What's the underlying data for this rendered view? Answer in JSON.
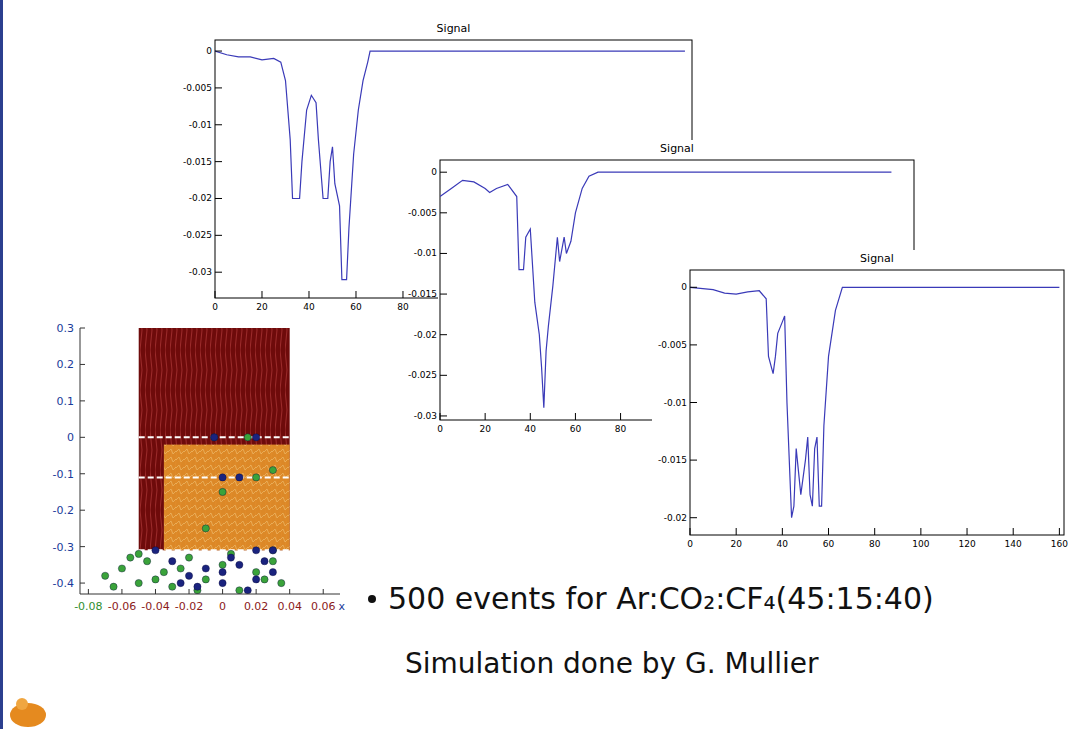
{
  "chart_data": [
    {
      "type": "scatter",
      "xlim": [
        -0.085,
        0.07
      ],
      "ylim": [
        -0.43,
        0.3
      ],
      "xticks": [
        -0.08,
        -0.06,
        -0.04,
        -0.02,
        0,
        0.02,
        0.04,
        0.06
      ],
      "yticks": [
        0.3,
        0.2,
        0.1,
        0,
        -0.1,
        -0.2,
        -0.3,
        -0.4
      ],
      "x_label": "x",
      "electrodes": [
        0,
        -0.11,
        -0.31
      ],
      "drift_region": {
        "x": [
          -0.05,
          0.04
        ],
        "y": [
          -0.31,
          0.3
        ]
      },
      "avalanche_region": {
        "x": [
          -0.035,
          0.04
        ],
        "y": [
          -0.31,
          -0.02
        ]
      },
      "series": [
        {
          "color": "#3aa33a",
          "marker": "circle",
          "x": [
            -0.07,
            -0.06,
            -0.05,
            -0.045,
            -0.035,
            -0.03,
            -0.02,
            -0.01,
            0,
            0.01,
            0.02,
            0.03,
            0.035,
            -0.065,
            -0.055,
            -0.04,
            -0.025,
            -0.015,
            0.005,
            0.025,
            -0.005,
            0.015,
            0.02,
            -0.05,
            0.03,
            0.0,
            -0.01,
            0.03
          ],
          "values": [
            -0.38,
            -0.36,
            -0.4,
            -0.34,
            -0.37,
            -0.41,
            -0.33,
            -0.39,
            -0.35,
            -0.42,
            -0.37,
            -0.34,
            -0.4,
            -0.41,
            -0.33,
            -0.39,
            -0.36,
            -0.42,
            -0.32,
            -0.39,
            0,
            0,
            -0.11,
            -0.32,
            -0.31,
            -0.15,
            -0.25,
            -0.09
          ]
        },
        {
          "color": "#1a237e",
          "marker": "circle",
          "x": [
            -0.03,
            -0.02,
            -0.01,
            0,
            0.01,
            0.02,
            0.03,
            -0.015,
            0.005,
            0.015,
            0.025,
            -0.025,
            0.0,
            0.01,
            0.02,
            -0.005,
            0.03,
            -0.04,
            0.02,
            0.0
          ],
          "values": [
            -0.34,
            -0.38,
            -0.36,
            -0.4,
            -0.35,
            -0.39,
            -0.37,
            -0.41,
            -0.33,
            -0.42,
            -0.34,
            -0.4,
            -0.11,
            -0.11,
            0,
            0,
            -0.31,
            -0.31,
            -0.31,
            -0.37
          ]
        }
      ]
    },
    {
      "type": "line",
      "title": "Signal",
      "color": "#3a3ab8",
      "line_style": "solid",
      "xlim": [
        0,
        203
      ],
      "ylim": [
        -0.0335,
        0.0015
      ],
      "xticks": [
        0,
        20,
        40,
        60,
        80
      ],
      "yticks": [
        0,
        -0.005,
        -0.01,
        -0.015,
        -0.02,
        -0.025,
        -0.03
      ],
      "x": [
        0,
        5,
        10,
        15,
        20,
        25,
        28,
        30,
        32,
        33,
        36,
        37,
        39,
        41,
        43,
        44,
        46,
        48,
        49,
        50,
        51,
        53,
        54,
        56,
        57,
        59,
        61,
        63,
        65,
        66,
        100,
        150,
        200
      ],
      "values": [
        0,
        -0.0005,
        -0.0008,
        -0.0008,
        -0.0012,
        -0.001,
        -0.0015,
        -0.004,
        -0.012,
        -0.02,
        -0.02,
        -0.015,
        -0.008,
        -0.006,
        -0.007,
        -0.012,
        -0.02,
        -0.02,
        -0.015,
        -0.013,
        -0.018,
        -0.021,
        -0.031,
        -0.031,
        -0.024,
        -0.014,
        -0.008,
        -0.004,
        -0.0015,
        0,
        0,
        0,
        0
      ]
    },
    {
      "type": "line",
      "title": "Signal",
      "color": "#3a3ab8",
      "line_style": "solid",
      "xlim": [
        0,
        210
      ],
      "ylim": [
        -0.0305,
        0.0015
      ],
      "xticks": [
        0,
        20,
        40,
        60,
        80
      ],
      "yticks": [
        0,
        -0.005,
        -0.01,
        -0.015,
        -0.02,
        -0.025,
        -0.03
      ],
      "x": [
        0,
        5,
        10,
        15,
        20,
        22,
        25,
        30,
        34,
        35,
        37,
        38,
        40,
        42,
        44,
        45,
        46,
        47,
        48,
        50,
        52,
        53,
        55,
        56,
        58,
        60,
        63,
        66,
        70,
        100,
        150,
        200
      ],
      "values": [
        -0.003,
        -0.002,
        -0.001,
        -0.0012,
        -0.002,
        -0.0025,
        -0.002,
        -0.0015,
        -0.003,
        -0.012,
        -0.012,
        -0.008,
        -0.007,
        -0.016,
        -0.02,
        -0.024,
        -0.029,
        -0.022,
        -0.019,
        -0.014,
        -0.008,
        -0.011,
        -0.008,
        -0.01,
        -0.0085,
        -0.005,
        -0.002,
        -0.0005,
        0,
        0,
        0,
        0
      ]
    },
    {
      "type": "line",
      "title": "Signal",
      "color": "#3a3ab8",
      "line_style": "solid",
      "xlim": [
        0,
        162
      ],
      "ylim": [
        -0.0215,
        0.0015
      ],
      "xticks": [
        0,
        20,
        40,
        60,
        80,
        100,
        120,
        140,
        160
      ],
      "yticks": [
        0,
        -0.005,
        -0.01,
        -0.015,
        -0.02
      ],
      "x": [
        0,
        10,
        15,
        20,
        25,
        30,
        33,
        34,
        36,
        37,
        38,
        40,
        41,
        42,
        44,
        45,
        46,
        47,
        48,
        50,
        51,
        52,
        53,
        54,
        55,
        56,
        57,
        58,
        60,
        63,
        66,
        100,
        160
      ],
      "values": [
        0,
        -0.0002,
        -0.0005,
        -0.0006,
        -0.0004,
        -0.0003,
        -0.001,
        -0.006,
        -0.0075,
        -0.006,
        -0.004,
        -0.003,
        -0.0025,
        -0.01,
        -0.02,
        -0.019,
        -0.014,
        -0.016,
        -0.018,
        -0.015,
        -0.013,
        -0.018,
        -0.019,
        -0.014,
        -0.013,
        -0.019,
        -0.019,
        -0.012,
        -0.006,
        -0.002,
        0,
        0,
        0
      ]
    }
  ],
  "bullets": [
    "500 events for Ar:CO₂:CF₄(45:15:40)"
  ],
  "credit": "Simulation done by G. Mullier"
}
